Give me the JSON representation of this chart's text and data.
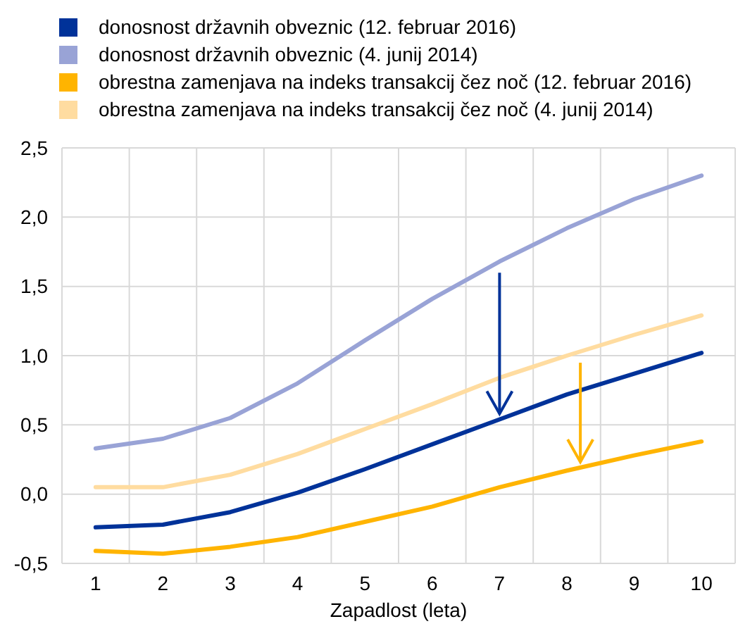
{
  "chart_data": {
    "type": "line",
    "xlabel": "Zapadlost (leta)",
    "categories": [
      "1",
      "2",
      "3",
      "4",
      "5",
      "6",
      "7",
      "8",
      "9",
      "10"
    ],
    "ylim": [
      -0.5,
      2.5
    ],
    "yticks": [
      {
        "value": -0.5,
        "label": "-0,5"
      },
      {
        "value": 0,
        "label": "0,0"
      },
      {
        "value": 0.5,
        "label": "0,5"
      },
      {
        "value": 1,
        "label": "1,0"
      },
      {
        "value": 1.5,
        "label": "1,5"
      },
      {
        "value": 2,
        "label": "2,0"
      },
      {
        "value": 2.5,
        "label": "2,5"
      }
    ],
    "grid": true,
    "legend": "top left",
    "marker": "none",
    "line_style": "solid",
    "series": [
      {
        "name": "donosnost državnih obveznic (12. februar 2016)",
        "color": "#003299",
        "values": [
          -0.24,
          -0.22,
          -0.13,
          0.01,
          0.18,
          0.36,
          0.54,
          0.72,
          0.87,
          1.02
        ]
      },
      {
        "name": "donosnost državnih obveznic (4. junij 2014)",
        "color": "#99a3d6",
        "values": [
          0.33,
          0.4,
          0.55,
          0.8,
          1.11,
          1.41,
          1.68,
          1.92,
          2.13,
          2.3
        ]
      },
      {
        "name": "obrestna zamenjava na indeks transakcij čez noč (12. februar 2016)",
        "color": "#ffb400",
        "values": [
          -0.41,
          -0.43,
          -0.38,
          -0.31,
          -0.2,
          -0.09,
          0.05,
          0.17,
          0.28,
          0.38
        ]
      },
      {
        "name": "obrestna zamenjava na indeks transakcij čez noč (4. junij 2014)",
        "color": "#ffdca0",
        "values": [
          0.05,
          0.05,
          0.14,
          0.29,
          0.47,
          0.65,
          0.84,
          1.0,
          1.15,
          1.29
        ]
      }
    ]
  }
}
